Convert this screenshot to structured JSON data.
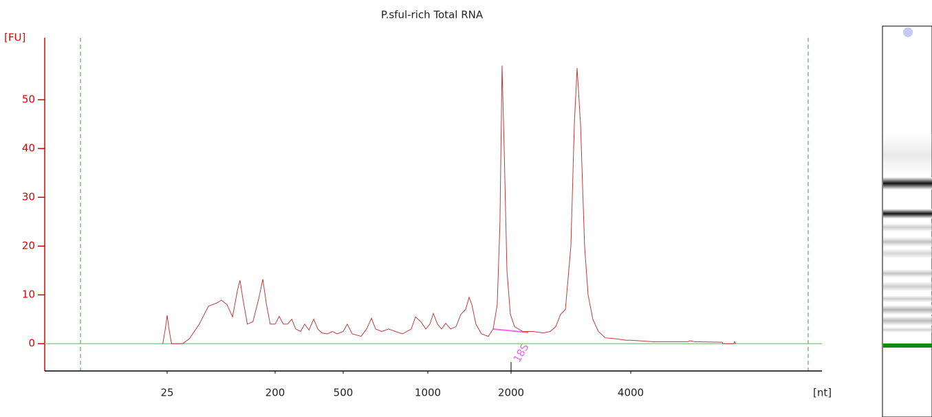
{
  "chart_data": {
    "type": "line",
    "title": "P.sful-rich Total RNA",
    "y_label": "[FU]",
    "x_label": "[nt]",
    "annotation": "18S",
    "color": "#c03a3a",
    "baseline_color": "#7fbf7f",
    "axis_color": "#e00000",
    "grid": false,
    "ylim": [
      -5.6,
      62.7
    ],
    "yticks": [
      0,
      10,
      20,
      30,
      40,
      50
    ],
    "xticks": [
      25,
      200,
      500,
      1000,
      2000,
      4000
    ],
    "x": [
      18,
      22,
      25,
      28,
      32,
      50,
      61,
      77,
      92,
      105,
      113,
      122,
      131,
      139,
      143,
      148,
      155,
      164,
      173,
      180,
      186,
      192,
      200,
      218,
      236,
      255,
      273,
      291,
      312,
      330,
      349,
      370,
      388,
      406,
      430,
      452,
      473,
      500,
      524,
      553,
      606,
      638,
      667,
      691,
      728,
      768,
      809,
      850,
      902,
      927,
      959,
      988,
      1025,
      1066,
      1116,
      1165,
      1215,
      1273,
      1339,
      1397,
      1454,
      1496,
      1529,
      1578,
      1644,
      1727,
      1785,
      1834,
      1867,
      1892,
      1917,
      1950,
      1992,
      2058,
      2195,
      2368,
      2540,
      2655,
      2747,
      2827,
      2908,
      3000,
      3057,
      3103,
      3161,
      3229,
      3287,
      3367,
      3459,
      3574,
      3747,
      3919,
      4000,
      4379,
      4954,
      4988,
      5069,
      5528,
      5540,
      5724,
      5735,
      5758
    ],
    "values": [
      0,
      3,
      5.8,
      3,
      0,
      0,
      1,
      4,
      7.7,
      8.3,
      8.9,
      8,
      5.5,
      11,
      13,
      9,
      4,
      4.5,
      9,
      13.2,
      8,
      4,
      4,
      5.6,
      4,
      4,
      5,
      3,
      2.5,
      4,
      2.8,
      5,
      3,
      2.2,
      2,
      2.5,
      2,
      2.5,
      4,
      2,
      1.5,
      3,
      5.2,
      3,
      2.5,
      3,
      2.5,
      2,
      3,
      5.5,
      4.5,
      3,
      4,
      6.2,
      4,
      3,
      4.2,
      3,
      3.5,
      6,
      7,
      9.5,
      8,
      4,
      2,
      1.5,
      3,
      8,
      25,
      57,
      40,
      15,
      6,
      3.5,
      2.5,
      2.5,
      2.2,
      2.5,
      3.5,
      6,
      7,
      20,
      45,
      56.5,
      45,
      20,
      10,
      5,
      2.5,
      1.2,
      1,
      0.7,
      0.7,
      0.4,
      0.4,
      0.6,
      0.4,
      0.3,
      0,
      0,
      0.4,
      0
    ]
  }
}
